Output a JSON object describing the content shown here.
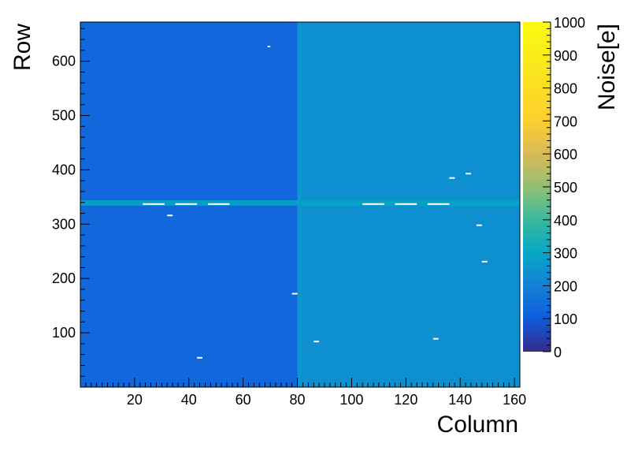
{
  "chart_data": {
    "type": "heatmap",
    "title": "",
    "xlabel": "Column",
    "ylabel": "Row",
    "zlabel": "Noise[e]",
    "xlim": [
      0,
      162
    ],
    "ylim": [
      0,
      672
    ],
    "zlim": [
      0,
      1000
    ],
    "xticks": [
      20,
      40,
      60,
      80,
      100,
      120,
      140,
      160
    ],
    "yticks": [
      100,
      200,
      300,
      400,
      500,
      600
    ],
    "zticks": [
      0,
      100,
      200,
      300,
      400,
      500,
      600,
      700,
      800,
      900,
      1000
    ],
    "colormap": "parula",
    "regions": [
      {
        "x": [
          0,
          80
        ],
        "y": [
          0,
          672
        ],
        "value": 130
      },
      {
        "x": [
          80,
          162
        ],
        "y": [
          0,
          672
        ],
        "value": 240
      }
    ],
    "hot_rows": [
      {
        "y": [
          334,
          344
        ],
        "x": [
          0,
          162
        ],
        "value": 300
      }
    ],
    "hot_columns": [
      {
        "x": [
          80,
          81.5
        ],
        "y": [
          0,
          672
        ],
        "value": 260
      }
    ],
    "white_pixels": [
      {
        "x": [
          69,
          70
        ],
        "y": 627
      },
      {
        "x": [
          23,
          31
        ],
        "y": 337
      },
      {
        "x": [
          35,
          43
        ],
        "y": 337
      },
      {
        "x": [
          47,
          55
        ],
        "y": 337
      },
      {
        "x": [
          104,
          112
        ],
        "y": 337
      },
      {
        "x": [
          116,
          124
        ],
        "y": 337
      },
      {
        "x": [
          128,
          136
        ],
        "y": 337
      },
      {
        "x": [
          32,
          34
        ],
        "y": 316
      },
      {
        "x": [
          136,
          138
        ],
        "y": 385
      },
      {
        "x": [
          142,
          144
        ],
        "y": 393
      },
      {
        "x": [
          146,
          148
        ],
        "y": 298
      },
      {
        "x": [
          148,
          150
        ],
        "y": 231
      },
      {
        "x": [
          78,
          80
        ],
        "y": 172
      },
      {
        "x": [
          86,
          88
        ],
        "y": 84
      },
      {
        "x": [
          130,
          132
        ],
        "y": 89
      },
      {
        "x": [
          43,
          45
        ],
        "y": 54
      }
    ]
  }
}
